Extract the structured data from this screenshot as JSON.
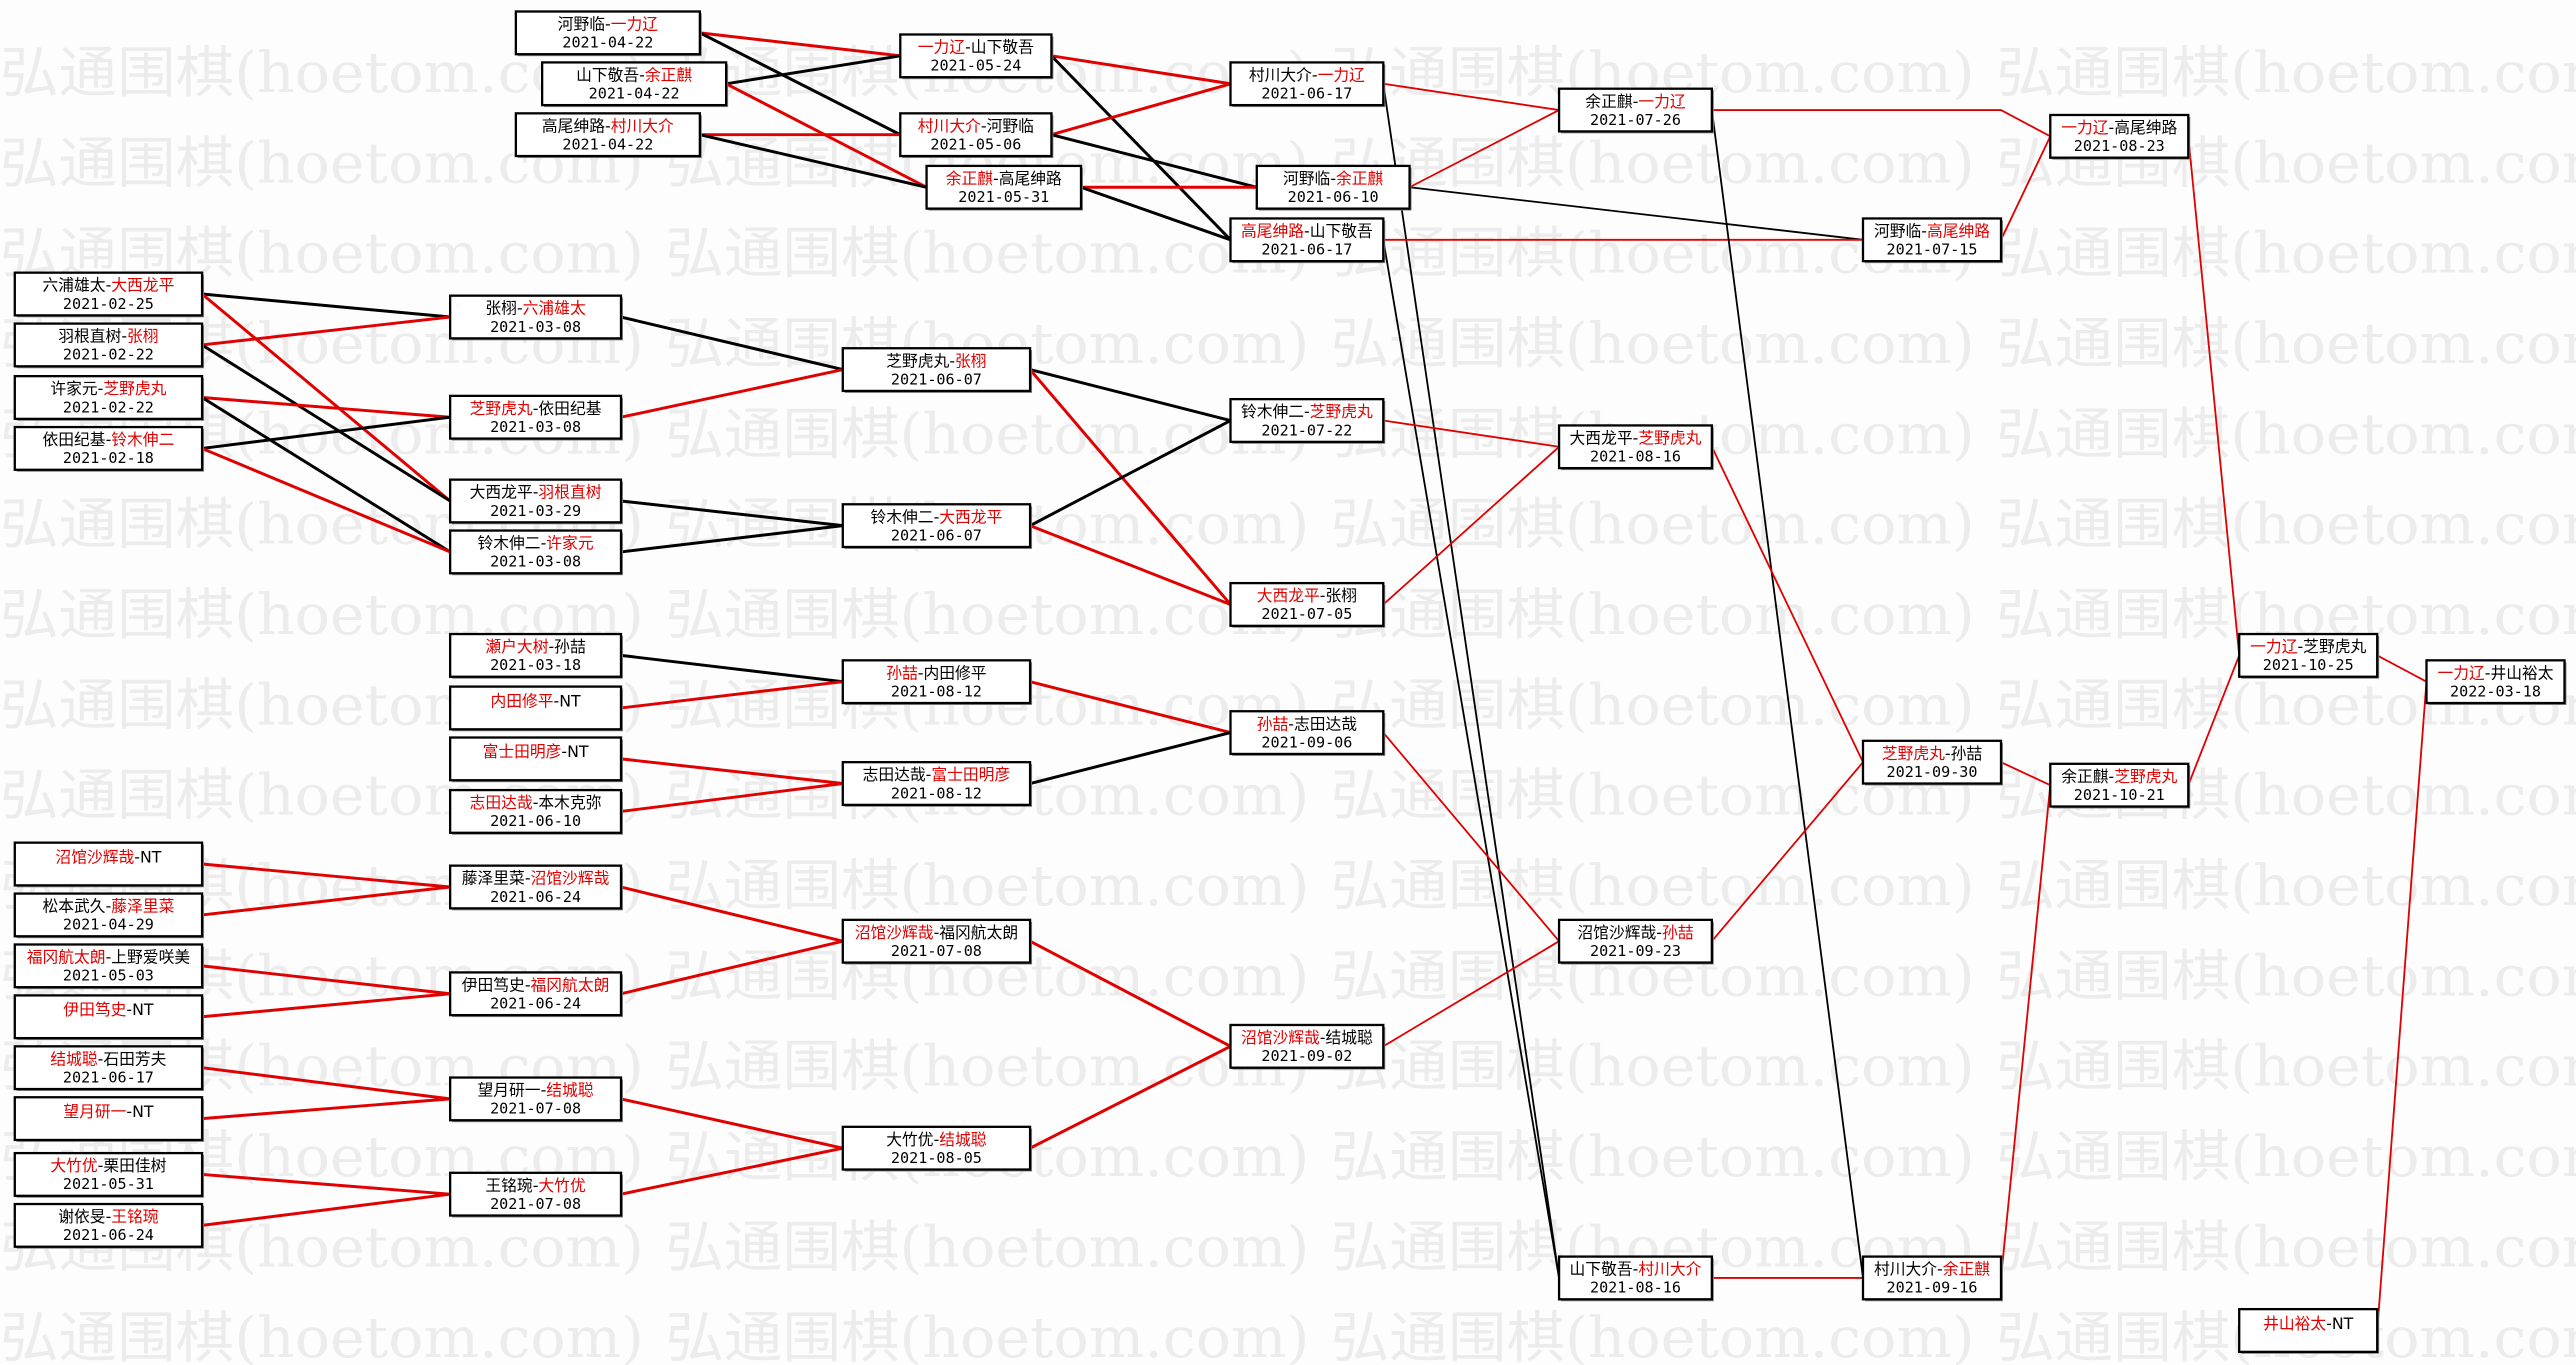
{
  "watermark": "弘通围棋(hoetom.com)",
  "colors": {
    "winner": "#e00000",
    "loser_line": "#000000",
    "winner_line": "#e00000",
    "box_border": "#000000",
    "watermark": "#ececec"
  },
  "nodes": [
    {
      "p1": "河野临",
      "p2": "一力辽",
      "winner": 2,
      "date": "2021-04-22"
    },
    {
      "p1": "山下敬吾",
      "p2": "余正麒",
      "winner": 2,
      "date": "2021-04-22"
    },
    {
      "p1": "高尾绅路",
      "p2": "村川大介",
      "winner": 2,
      "date": "2021-04-22"
    },
    {
      "p1": "一力辽",
      "p2": "山下敬吾",
      "winner": 1,
      "date": "2021-05-24"
    },
    {
      "p1": "村川大介",
      "p2": "河野临",
      "winner": 1,
      "date": "2021-05-06"
    },
    {
      "p1": "余正麒",
      "p2": "高尾绅路",
      "winner": 1,
      "date": "2021-05-31"
    },
    {
      "p1": "村川大介",
      "p2": "一力辽",
      "winner": 2,
      "date": "2021-06-17"
    },
    {
      "p1": "河野临",
      "p2": "余正麒",
      "winner": 2,
      "date": "2021-06-10"
    },
    {
      "p1": "高尾绅路",
      "p2": "山下敬吾",
      "winner": 1,
      "date": "2021-06-17"
    },
    {
      "p1": "余正麒",
      "p2": "一力辽",
      "winner": 2,
      "date": "2021-07-26"
    },
    {
      "p1": "河野临",
      "p2": "高尾绅路",
      "winner": 2,
      "date": "2021-07-15"
    },
    {
      "p1": "一力辽",
      "p2": "高尾绅路",
      "winner": 1,
      "date": "2021-08-23"
    },
    {
      "p1": "六浦雄太",
      "p2": "大西龙平",
      "winner": 2,
      "date": "2021-02-25"
    },
    {
      "p1": "羽根直树",
      "p2": "张栩",
      "winner": 2,
      "date": "2021-02-22"
    },
    {
      "p1": "许家元",
      "p2": "芝野虎丸",
      "winner": 2,
      "date": "2021-02-22"
    },
    {
      "p1": "依田纪基",
      "p2": "铃木伸二",
      "winner": 2,
      "date": "2021-02-18"
    },
    {
      "p1": "张栩",
      "p2": "六浦雄太",
      "winner": 2,
      "date": "2021-03-08"
    },
    {
      "p1": "芝野虎丸",
      "p2": "依田纪基",
      "winner": 1,
      "date": "2021-03-08"
    },
    {
      "p1": "大西龙平",
      "p2": "羽根直树",
      "winner": 2,
      "date": "2021-03-29"
    },
    {
      "p1": "铃木伸二",
      "p2": "许家元",
      "winner": 2,
      "date": "2021-03-08"
    },
    {
      "p1": "芝野虎丸",
      "p2": "张栩",
      "winner": 2,
      "date": "2021-06-07"
    },
    {
      "p1": "铃木伸二",
      "p2": "大西龙平",
      "winner": 2,
      "date": "2021-06-07"
    },
    {
      "p1": "铃木伸二",
      "p2": "芝野虎丸",
      "winner": 2,
      "date": "2021-07-22"
    },
    {
      "p1": "大西龙平",
      "p2": "张栩",
      "winner": 1,
      "date": "2021-07-05"
    },
    {
      "p1": "大西龙平",
      "p2": "芝野虎丸",
      "winner": 2,
      "date": "2021-08-16"
    },
    {
      "p1": "瀬户大树",
      "p2": "孙喆",
      "winner": 1,
      "date": "2021-03-18"
    },
    {
      "p1": "内田修平",
      "p2": "NT",
      "winner": 1,
      "date": ""
    },
    {
      "p1": "富士田明彦",
      "p2": "NT",
      "winner": 1,
      "date": ""
    },
    {
      "p1": "志田达哉",
      "p2": "本木克弥",
      "winner": 1,
      "date": "2021-06-10"
    },
    {
      "p1": "孙喆",
      "p2": "内田修平",
      "winner": 1,
      "date": "2021-08-12"
    },
    {
      "p1": "志田达哉",
      "p2": "富士田明彦",
      "winner": 2,
      "date": "2021-08-12"
    },
    {
      "p1": "孙喆",
      "p2": "志田达哉",
      "winner": 1,
      "date": "2021-09-06"
    },
    {
      "p1": "沼馆沙辉哉",
      "p2": "NT",
      "winner": 1,
      "date": ""
    },
    {
      "p1": "松本武久",
      "p2": "藤泽里菜",
      "winner": 2,
      "date": "2021-04-29"
    },
    {
      "p1": "福冈航太朗",
      "p2": "上野爱咲美",
      "winner": 1,
      "date": "2021-05-03"
    },
    {
      "p1": "伊田笃史",
      "p2": "NT",
      "winner": 1,
      "date": ""
    },
    {
      "p1": "结城聪",
      "p2": "石田芳夫",
      "winner": 1,
      "date": "2021-06-17"
    },
    {
      "p1": "望月研一",
      "p2": "NT",
      "winner": 1,
      "date": ""
    },
    {
      "p1": "大竹优",
      "p2": "栗田佳树",
      "winner": 1,
      "date": "2021-05-31"
    },
    {
      "p1": "谢依旻",
      "p2": "王铭琬",
      "winner": 2,
      "date": "2021-06-24"
    },
    {
      "p1": "藤泽里菜",
      "p2": "沼馆沙辉哉",
      "winner": 2,
      "date": "2021-06-24"
    },
    {
      "p1": "伊田笃史",
      "p2": "福冈航太朗",
      "winner": 2,
      "date": "2021-06-24"
    },
    {
      "p1": "望月研一",
      "p2": "结城聪",
      "winner": 2,
      "date": "2021-07-08"
    },
    {
      "p1": "王铭琬",
      "p2": "大竹优",
      "winner": 2,
      "date": "2021-07-08"
    },
    {
      "p1": "沼馆沙辉哉",
      "p2": "福冈航太朗",
      "winner": 1,
      "date": "2021-07-08"
    },
    {
      "p1": "大竹优",
      "p2": "结城聪",
      "winner": 2,
      "date": "2021-08-05"
    },
    {
      "p1": "沼馆沙辉哉",
      "p2": "结城聪",
      "winner": 1,
      "date": "2021-09-02"
    },
    {
      "p1": "沼馆沙辉哉",
      "p2": "孙喆",
      "winner": 2,
      "date": "2021-09-23"
    },
    {
      "p1": "山下敬吾",
      "p2": "村川大介",
      "winner": 2,
      "date": "2021-08-16"
    },
    {
      "p1": "芝野虎丸",
      "p2": "孙喆",
      "winner": 1,
      "date": "2021-09-30"
    },
    {
      "p1": "村川大介",
      "p2": "余正麒",
      "winner": 2,
      "date": "2021-09-16"
    },
    {
      "p1": "余正麒",
      "p2": "芝野虎丸",
      "winner": 2,
      "date": "2021-10-21"
    },
    {
      "p1": "一力辽",
      "p2": "芝野虎丸",
      "winner": 1,
      "date": "2021-10-25"
    },
    {
      "p1": "井山裕太",
      "p2": "NT",
      "winner": 1,
      "date": ""
    },
    {
      "p1": "一力辽",
      "p2": "井山裕太",
      "winner": 1,
      "date": "2022-03-18"
    }
  ],
  "edges": [
    [
      0,
      3,
      "red"
    ],
    [
      0,
      4,
      "black"
    ],
    [
      1,
      3,
      "black"
    ],
    [
      1,
      5,
      "red"
    ],
    [
      2,
      4,
      "red"
    ],
    [
      2,
      5,
      "black"
    ],
    [
      3,
      6,
      "red"
    ],
    [
      3,
      8,
      "black"
    ],
    [
      4,
      6,
      "red"
    ],
    [
      4,
      7,
      "black"
    ],
    [
      5,
      7,
      "red"
    ],
    [
      5,
      8,
      "black"
    ],
    [
      6,
      9,
      "red"
    ],
    [
      6,
      48,
      "black"
    ],
    [
      7,
      9,
      "red"
    ],
    [
      7,
      10,
      "black"
    ],
    [
      8,
      10,
      "red"
    ],
    [
      8,
      48,
      "black"
    ],
    [
      9,
      11,
      "red"
    ],
    [
      9,
      50,
      "black"
    ],
    [
      10,
      11,
      "red"
    ],
    [
      11,
      52,
      "red"
    ],
    [
      48,
      50,
      "red"
    ],
    [
      50,
      51,
      "red"
    ],
    [
      12,
      16,
      "black"
    ],
    [
      12,
      18,
      "red"
    ],
    [
      13,
      16,
      "red"
    ],
    [
      13,
      18,
      "black"
    ],
    [
      14,
      17,
      "red"
    ],
    [
      14,
      19,
      "black"
    ],
    [
      15,
      17,
      "black"
    ],
    [
      15,
      19,
      "red"
    ],
    [
      16,
      20,
      "black"
    ],
    [
      17,
      20,
      "red"
    ],
    [
      18,
      21,
      "black"
    ],
    [
      19,
      21,
      "black"
    ],
    [
      20,
      22,
      "black"
    ],
    [
      20,
      23,
      "red"
    ],
    [
      21,
      22,
      "black"
    ],
    [
      21,
      23,
      "red"
    ],
    [
      22,
      24,
      "red"
    ],
    [
      23,
      24,
      "red"
    ],
    [
      24,
      49,
      "red"
    ],
    [
      25,
      29,
      "black"
    ],
    [
      26,
      29,
      "red"
    ],
    [
      27,
      30,
      "red"
    ],
    [
      28,
      30,
      "red"
    ],
    [
      29,
      31,
      "red"
    ],
    [
      30,
      31,
      "black"
    ],
    [
      31,
      47,
      "red"
    ],
    [
      32,
      40,
      "red"
    ],
    [
      33,
      40,
      "red"
    ],
    [
      34,
      41,
      "red"
    ],
    [
      35,
      41,
      "red"
    ],
    [
      36,
      42,
      "red"
    ],
    [
      37,
      42,
      "red"
    ],
    [
      38,
      43,
      "red"
    ],
    [
      39,
      43,
      "red"
    ],
    [
      40,
      44,
      "red"
    ],
    [
      41,
      44,
      "red"
    ],
    [
      42,
      45,
      "red"
    ],
    [
      43,
      45,
      "red"
    ],
    [
      44,
      46,
      "red"
    ],
    [
      45,
      46,
      "red"
    ],
    [
      46,
      47,
      "red"
    ],
    [
      47,
      49,
      "red"
    ],
    [
      49,
      51,
      "red"
    ],
    [
      51,
      52,
      "red"
    ],
    [
      52,
      54,
      "red"
    ],
    [
      53,
      54,
      "red"
    ]
  ]
}
